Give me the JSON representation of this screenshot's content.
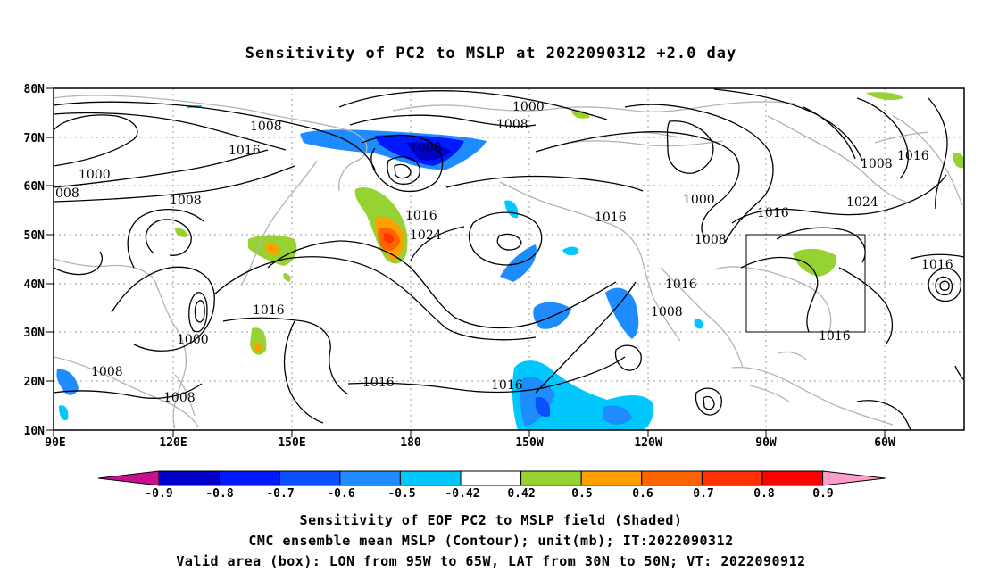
{
  "title": "Sensitivity of PC2 to MSLP at 2022090312 +2.0 day",
  "lat_labels": [
    "80N",
    "70N",
    "60N",
    "50N",
    "40N",
    "30N",
    "20N",
    "10N"
  ],
  "lon_labels": [
    "90E",
    "120E",
    "150E",
    "180",
    "150W",
    "120W",
    "90W",
    "60W"
  ],
  "contour_labels": [
    {
      "text": "1008"
    },
    {
      "text": "1016"
    },
    {
      "text": "1000"
    },
    {
      "text": "008"
    },
    {
      "text": "1008"
    },
    {
      "text": "1016"
    },
    {
      "text": "1000"
    },
    {
      "text": "1008"
    },
    {
      "text": "1008"
    },
    {
      "text": "1008"
    },
    {
      "text": "1016"
    },
    {
      "text": "1024"
    },
    {
      "text": "1000"
    },
    {
      "text": "1008"
    },
    {
      "text": "1016"
    },
    {
      "text": "1016"
    },
    {
      "text": "1016"
    },
    {
      "text": "1008"
    },
    {
      "text": "1016"
    },
    {
      "text": "1000"
    },
    {
      "text": "1008"
    },
    {
      "text": "1016"
    },
    {
      "text": "1024"
    },
    {
      "text": "1008"
    },
    {
      "text": "1016"
    },
    {
      "text": "1016"
    },
    {
      "text": "1016"
    }
  ],
  "colorbar": {
    "labels": [
      "-0.9",
      "-0.8",
      "-0.7",
      "-0.6",
      "-0.5",
      "-0.42",
      "0.42",
      "0.5",
      "0.6",
      "0.7",
      "0.8",
      "0.9"
    ],
    "colors": {
      "below": "#c8118f",
      "bins": [
        "#0000c8",
        "#0019ff",
        "#0a50ff",
        "#1e8cff",
        "#00c8ff",
        "#ffffff",
        "#96d232",
        "#ffa000",
        "#ff6400",
        "#ff3200",
        "#ff0000"
      ],
      "above": "#ff9ec8"
    }
  },
  "captions": [
    "Sensitivity of EOF PC2 to MSLP field (Shaded)",
    "CMC ensemble mean MSLP (Contour); unit(mb); IT:2022090312",
    "Valid area (box): LON from 95W to 65W, LAT from 30N to 50N; VT: 2022090912"
  ],
  "valid_box": {
    "lon_min": -95,
    "lon_max": -65,
    "lat_min": 30,
    "lat_max": 50
  },
  "palette": {
    "coast": "#b4b4b4",
    "contour": "#000000",
    "grid": "#999999"
  }
}
